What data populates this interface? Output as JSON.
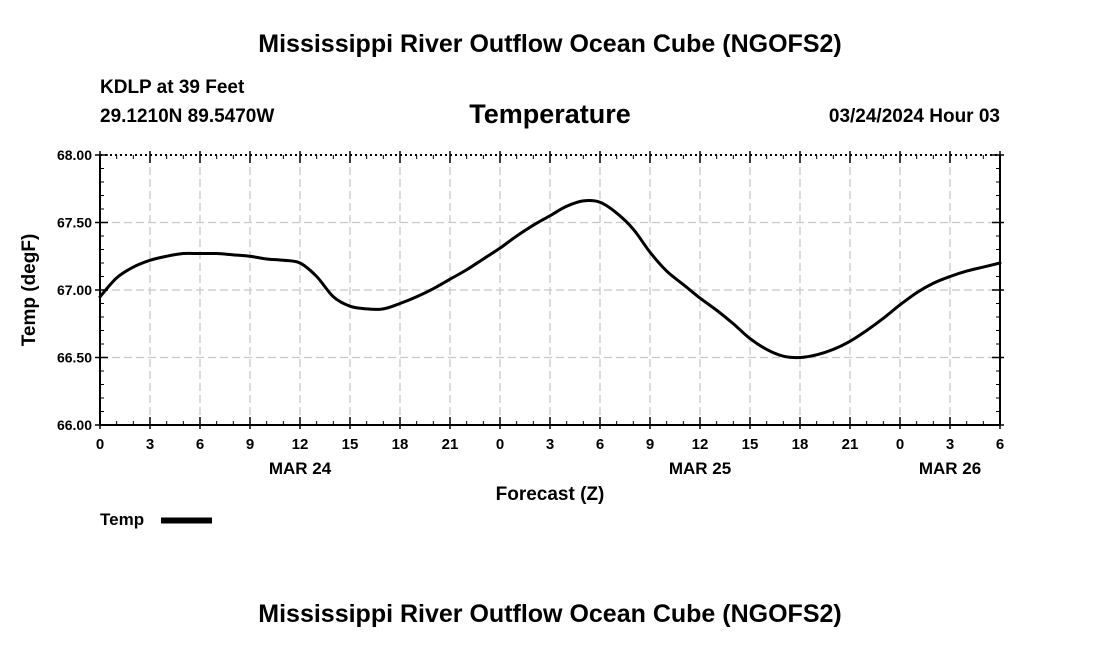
{
  "header": {
    "title": "Mississippi River Outflow Ocean Cube (NGOFS2)",
    "station": "KDLP at 39 Feet",
    "coordinates": "29.1210N  89.5470W",
    "run_datetime": "03/24/2024 Hour 03"
  },
  "footer": {
    "title": "Mississippi River Outflow Ocean Cube (NGOFS2)"
  },
  "legend": {
    "label": "Temp"
  },
  "colors": {
    "line": "#000000",
    "grid": "#c8c8c8",
    "axis": "#000000"
  },
  "chart_data": {
    "type": "line",
    "title": "Temperature",
    "xlabel": "Forecast (Z)",
    "ylabel": "Temp (degF)",
    "ylim": [
      66.0,
      68.0
    ],
    "xlim": [
      0,
      54
    ],
    "y_ticks": [
      "66.00",
      "66.50",
      "67.00",
      "67.50",
      "68.00"
    ],
    "y_tick_values": [
      66.0,
      66.5,
      67.0,
      67.5,
      68.0
    ],
    "x_tick_values": [
      0,
      3,
      6,
      9,
      12,
      15,
      18,
      21,
      24,
      27,
      30,
      33,
      36,
      39,
      42,
      45,
      48,
      51,
      54
    ],
    "x_tick_labels": [
      "0",
      "3",
      "6",
      "9",
      "12",
      "15",
      "18",
      "21",
      "0",
      "3",
      "6",
      "9",
      "12",
      "15",
      "18",
      "21",
      "0",
      "3",
      "6"
    ],
    "date_labels": [
      {
        "hour": 12,
        "label": "MAR 24"
      },
      {
        "hour": 36,
        "label": "MAR 25"
      },
      {
        "hour": 51,
        "label": "MAR 26"
      }
    ],
    "grid": true,
    "series": [
      {
        "name": "Temp",
        "x": [
          0,
          1,
          2,
          3,
          4,
          5,
          6,
          7,
          8,
          9,
          10,
          11,
          12,
          13,
          14,
          15,
          16,
          17,
          18,
          19,
          20,
          21,
          22,
          23,
          24,
          25,
          26,
          27,
          28,
          29,
          30,
          31,
          32,
          33,
          34,
          35,
          36,
          37,
          38,
          39,
          40,
          41,
          42,
          43,
          44,
          45,
          46,
          47,
          48,
          49,
          50,
          51,
          52,
          53,
          54
        ],
        "values": [
          66.95,
          67.09,
          67.17,
          67.22,
          67.25,
          67.27,
          67.27,
          67.27,
          67.26,
          67.25,
          67.23,
          67.22,
          67.2,
          67.1,
          66.95,
          66.88,
          66.86,
          66.86,
          66.9,
          66.95,
          67.01,
          67.08,
          67.15,
          67.23,
          67.31,
          67.4,
          67.48,
          67.55,
          67.62,
          67.66,
          67.65,
          67.57,
          67.45,
          67.28,
          67.14,
          67.04,
          66.94,
          66.85,
          66.75,
          66.64,
          66.56,
          66.51,
          66.5,
          66.52,
          66.56,
          66.62,
          66.7,
          66.79,
          66.89,
          66.98,
          67.05,
          67.1,
          67.14,
          67.17,
          67.2
        ]
      }
    ]
  }
}
